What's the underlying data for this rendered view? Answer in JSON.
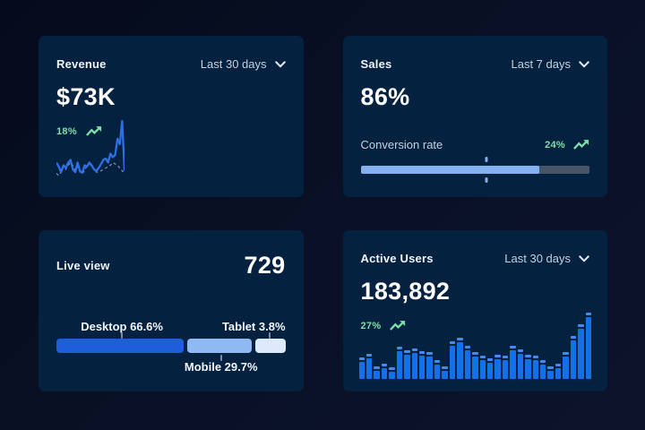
{
  "theme": {
    "page_bg": "#0a1126",
    "card_bg": "#042140",
    "green": "#7ee0a8",
    "line_primary": "#2e6fe4",
    "line_secondary": "#93a0ae",
    "bar_color": "#1270e8",
    "bar_cap": "#418bf2",
    "progress_fill": "#84b0f0",
    "progress_track": "#485569",
    "desktop_color": "#1d5ed9",
    "mobile_color": "#8fb9f2",
    "tablet_color": "#ddeafc"
  },
  "cards": {
    "revenue": {
      "title": "Revenue",
      "range_label": "Last 30 days",
      "value": "$73K",
      "delta": "18%",
      "chart_data": {
        "type": "line",
        "ylim": [
          0,
          100
        ],
        "series": [
          {
            "name": "current",
            "style": "solid",
            "values": [
              27,
              21,
              13,
              23,
              19,
              27,
              31,
              17,
              13,
              27,
              15,
              12,
              23,
              21,
              27,
              23,
              17,
              15,
              19,
              25,
              31,
              33,
              27,
              40,
              35,
              38,
              62,
              54,
              88,
              15
            ]
          },
          {
            "name": "previous",
            "style": "dashed",
            "values": [
              11,
              8,
              13,
              21,
              17,
              23,
              27,
              23,
              15,
              21,
              13,
              11,
              15,
              23,
              25,
              21,
              17,
              13,
              13,
              15,
              17,
              19,
              21,
              23,
              27,
              25,
              23,
              19,
              15,
              11
            ]
          }
        ]
      }
    },
    "sales": {
      "title": "Sales",
      "range_label": "Last 7 days",
      "value": "86%",
      "metric_label": "Conversion rate",
      "delta": "24%",
      "chart_data": {
        "type": "progress",
        "fill_percent": 78,
        "marker_percent": 55
      }
    },
    "live_view": {
      "title": "Live view",
      "value": "729",
      "chart_data": {
        "type": "stacked-bar",
        "segments": [
          {
            "name": "Desktop",
            "label": "Desktop 66.6%",
            "percent": 66.6,
            "visual_percent": 55.5
          },
          {
            "name": "Mobile",
            "label": "Mobile 29.7%",
            "percent": 29.7,
            "visual_percent": 28.5
          },
          {
            "name": "Tablet",
            "label": "Tablet 3.8%",
            "percent": 3.8,
            "visual_percent": 13.0
          }
        ]
      }
    },
    "active_users": {
      "title": "Active Users",
      "range_label": "Last 30 days",
      "value": "183,892",
      "delta": "27%",
      "chart_data": {
        "type": "bar",
        "values": [
          32,
          38,
          19,
          23,
          18,
          48,
          43,
          46,
          42,
          40,
          28,
          19,
          57,
          62,
          50,
          40,
          35,
          31,
          37,
          35,
          50,
          45,
          37,
          35,
          29,
          19,
          23,
          40,
          65,
          83,
          100
        ]
      }
    }
  }
}
